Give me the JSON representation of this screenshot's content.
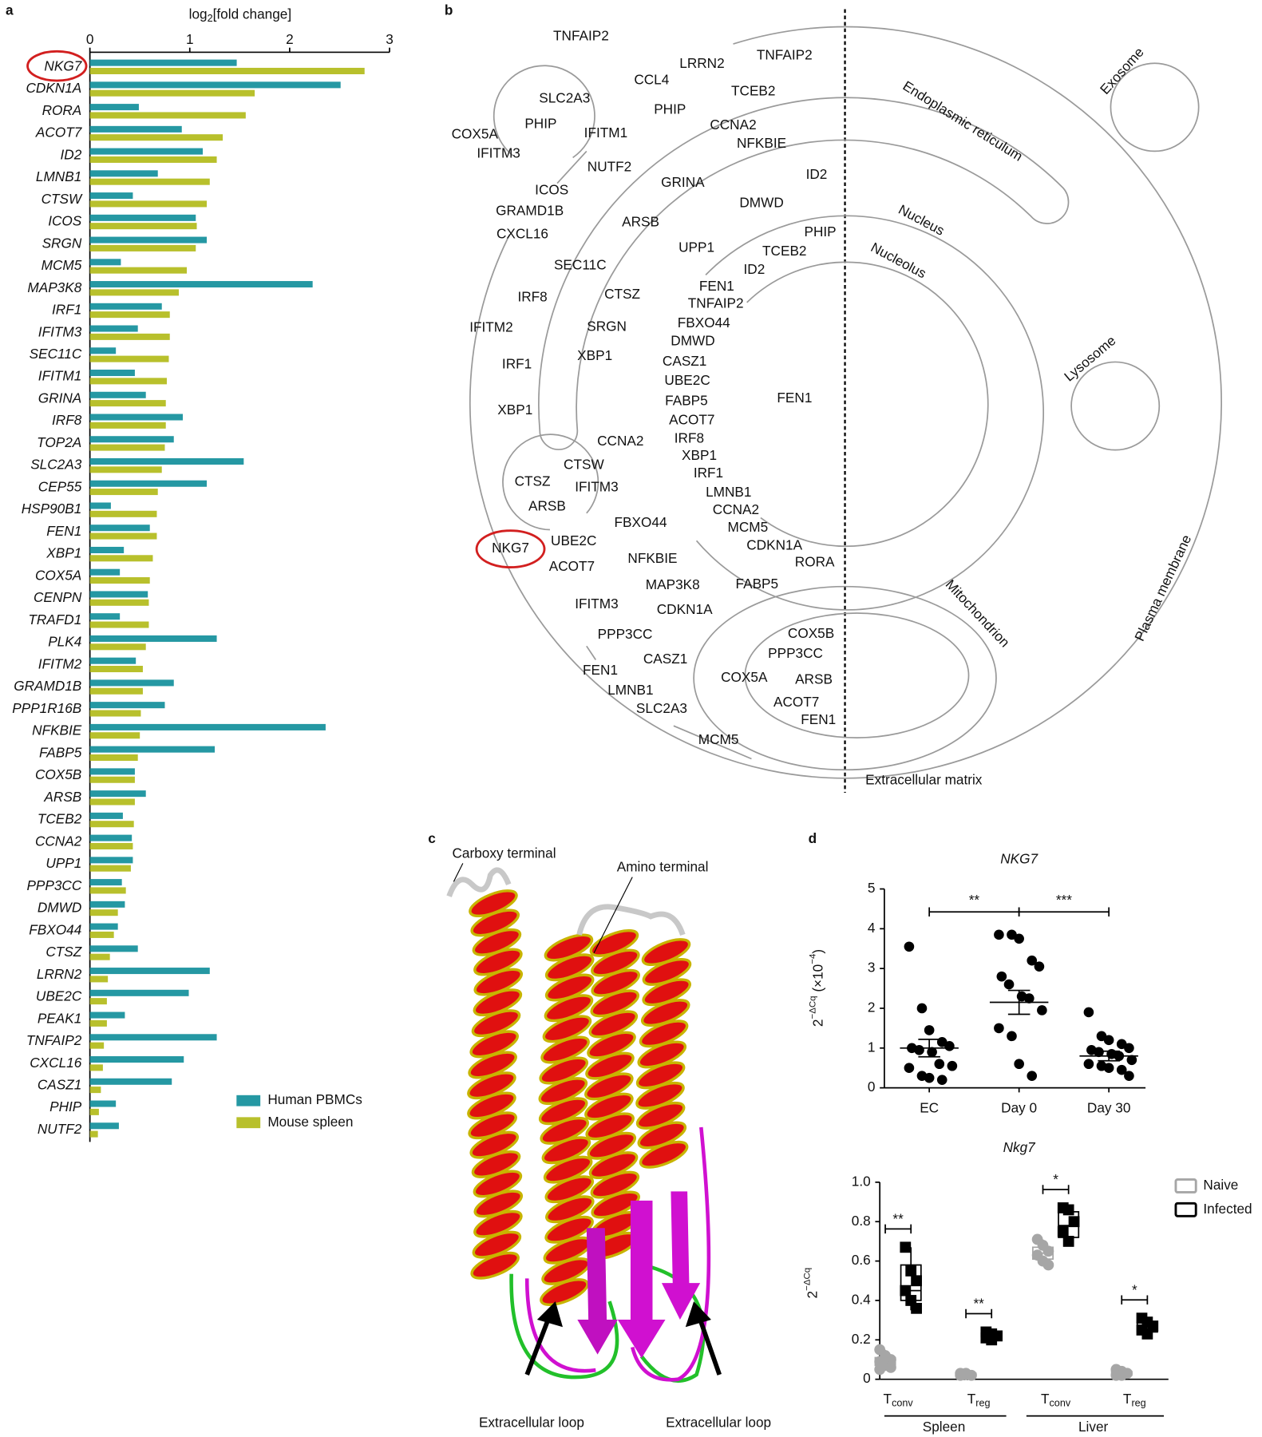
{
  "panel_labels": [
    "a",
    "b",
    "c",
    "d"
  ],
  "chart_data": [
    {
      "type": "bar",
      "orientation": "horizontal",
      "x_label": {
        "base": "log",
        "sub": "2",
        "rest": "[fold change]"
      },
      "xlim": [
        0,
        3
      ],
      "xticks": [
        0,
        1,
        2,
        3
      ],
      "categories": [
        "NKG7",
        "CDKN1A",
        "RORA",
        "ACOT7",
        "ID2",
        "LMNB1",
        "CTSW",
        "ICOS",
        "SRGN",
        "MCM5",
        "MAP3K8",
        "IRF1",
        "IFITM3",
        "SEC11C",
        "IFITM1",
        "GRINA",
        "IRF8",
        "TOP2A",
        "SLC2A3",
        "CEP55",
        "HSP90B1",
        "FEN1",
        "XBP1",
        "COX5A",
        "CENPN",
        "TRAFD1",
        "PLK4",
        "IFITM2",
        "GRAMD1B",
        "PPP1R16B",
        "NFKBIE",
        "FABP5",
        "COX5B",
        "ARSB",
        "TCEB2",
        "CCNA2",
        "UPP1",
        "PPP3CC",
        "DMWD",
        "FBXO44",
        "CTSZ",
        "LRRN2",
        "UBE2C",
        "PEAK1",
        "TNFAIP2",
        "CXCL16",
        "CASZ1",
        "PHIP",
        "NUTF2"
      ],
      "series": [
        {
          "name": "Human PBMCs",
          "color": "#2598a3",
          "values": [
            1.47,
            2.51,
            0.49,
            0.92,
            1.13,
            0.68,
            0.43,
            1.06,
            1.17,
            0.31,
            2.23,
            0.72,
            0.48,
            0.26,
            0.45,
            0.56,
            0.93,
            0.84,
            1.54,
            1.17,
            0.21,
            0.6,
            0.34,
            0.3,
            0.58,
            0.3,
            1.27,
            0.46,
            0.84,
            0.75,
            2.36,
            1.25,
            0.45,
            0.56,
            0.33,
            0.42,
            0.43,
            0.32,
            0.35,
            0.28,
            0.48,
            1.2,
            0.99,
            0.35,
            1.27,
            0.94,
            0.82,
            0.26,
            0.29
          ]
        },
        {
          "name": "Mouse spleen",
          "color": "#b8c02c",
          "values": [
            2.75,
            1.65,
            1.56,
            1.33,
            1.27,
            1.2,
            1.17,
            1.07,
            1.06,
            0.97,
            0.89,
            0.8,
            0.8,
            0.79,
            0.77,
            0.76,
            0.76,
            0.75,
            0.72,
            0.68,
            0.67,
            0.67,
            0.63,
            0.6,
            0.59,
            0.59,
            0.56,
            0.53,
            0.53,
            0.51,
            0.5,
            0.48,
            0.45,
            0.45,
            0.44,
            0.43,
            0.41,
            0.36,
            0.28,
            0.24,
            0.2,
            0.18,
            0.17,
            0.17,
            0.14,
            0.13,
            0.11,
            0.09,
            0.08
          ]
        }
      ]
    },
    {
      "type": "scatter",
      "title": "NKG7",
      "y_label": {
        "base": "2",
        "sup": "−ΔCq",
        "rest": " (×10",
        "sup2": "−4",
        "end": ")"
      },
      "categories": [
        "EC",
        "Day 0",
        "Day 30"
      ],
      "values": [
        [
          3.55,
          2.0,
          1.45,
          1.15,
          1.05,
          1.0,
          0.95,
          0.9,
          0.6,
          0.55,
          0.5,
          0.3,
          0.25,
          0.2
        ],
        [
          3.85,
          3.85,
          3.75,
          3.2,
          3.05,
          2.8,
          2.6,
          2.3,
          2.25,
          1.95,
          1.5,
          1.3,
          0.6,
          0.3
        ],
        [
          1.9,
          1.3,
          1.2,
          1.1,
          1.0,
          0.95,
          0.9,
          0.85,
          0.8,
          0.7,
          0.6,
          0.55,
          0.5,
          0.45,
          0.3
        ]
      ],
      "mean": [
        1.0,
        2.15,
        0.8
      ],
      "sem": [
        0.22,
        0.3,
        0.12
      ],
      "color": "#000000",
      "ylim": [
        0,
        5
      ],
      "yticks": [
        0,
        1,
        2,
        3,
        4,
        5
      ],
      "annotations": [
        "**",
        "***"
      ]
    },
    {
      "type": "box",
      "title": "Nkg7",
      "y_label": {
        "base": "2",
        "sup": "−ΔCq"
      },
      "categories": [
        {
          "base": "T",
          "sub": "conv"
        },
        {
          "base": "T",
          "sub": "reg"
        },
        {
          "base": "T",
          "sub": "conv"
        },
        {
          "base": "T",
          "sub": "reg"
        }
      ],
      "groups": [
        "Spleen",
        "Liver"
      ],
      "ylim": [
        0,
        1
      ],
      "yticks": [
        0,
        0.2,
        0.4,
        0.6,
        0.8,
        {
          "value": 1,
          "label": "1.0"
        }
      ],
      "series": [
        {
          "name": "Naive",
          "color": "#a6a6a6",
          "boxes": [
            {
              "min": 0.05,
              "q1": 0.07,
              "median": 0.09,
              "q3": 0.11,
              "max": 0.15,
              "points": [
                0.15,
                0.12,
                0.1,
                0.09,
                0.07,
                0.06,
                0.05
              ]
            },
            {
              "min": 0.015,
              "q1": 0.02,
              "median": 0.025,
              "q3": 0.03,
              "max": 0.035,
              "points": [
                0.03,
                0.025,
                0.02,
                0.02,
                0.03
              ]
            },
            {
              "min": 0.58,
              "q1": 0.61,
              "median": 0.64,
              "q3": 0.67,
              "max": 0.71,
              "points": [
                0.71,
                0.68,
                0.65,
                0.63,
                0.6,
                0.58
              ]
            },
            {
              "min": 0.015,
              "q1": 0.02,
              "median": 0.03,
              "q3": 0.04,
              "max": 0.05,
              "points": [
                0.05,
                0.04,
                0.03,
                0.02,
                0.02
              ]
            }
          ]
        },
        {
          "name": "Infected",
          "color": "#000000",
          "boxes": [
            {
              "min": 0.35,
              "q1": 0.4,
              "median": 0.45,
              "q3": 0.58,
              "max": 0.67,
              "points": [
                0.67,
                0.55,
                0.5,
                0.45,
                0.4,
                0.36
              ]
            },
            {
              "min": 0.19,
              "q1": 0.2,
              "median": 0.22,
              "q3": 0.23,
              "max": 0.24,
              "points": [
                0.24,
                0.23,
                0.22,
                0.21,
                0.2
              ]
            },
            {
              "min": 0.7,
              "q1": 0.72,
              "median": 0.78,
              "q3": 0.85,
              "max": 0.87,
              "points": [
                0.87,
                0.86,
                0.8,
                0.75,
                0.7
              ]
            },
            {
              "min": 0.22,
              "q1": 0.24,
              "median": 0.27,
              "q3": 0.29,
              "max": 0.31,
              "points": [
                0.31,
                0.29,
                0.27,
                0.25,
                0.23
              ]
            }
          ]
        }
      ],
      "annotations": [
        "**",
        "**",
        "*",
        "*"
      ]
    }
  ],
  "diagram": {
    "compartments": [
      "Exosome",
      "Endoplasmic reticulum",
      "Nucleus",
      "Nucleolus",
      "Lysosome",
      "Mitochondrion",
      "Plasma membrane",
      "Extracellular matrix"
    ],
    "genes": [
      "TNFAIP2",
      "LRRN2",
      "TNFAIP2",
      "CCL4",
      "SLC2A3",
      "PHIP",
      "PHIP",
      "TCEB2",
      "COX5A",
      "IFITM1",
      "CCNA2",
      "NFKBIE",
      "IFITM3",
      "NUTF2",
      "ID2",
      "GRINA",
      "ICOS",
      "GRAMD1B",
      "DMWD",
      "ARSB",
      "CXCL16",
      "PHIP",
      "UPP1",
      "TCEB2",
      "SEC11C",
      "ID2",
      "FEN1",
      "CTSZ",
      "IRF8",
      "TNFAIP2",
      "FBXO44",
      "IFITM2",
      "SRGN",
      "DMWD",
      "XBP1",
      "CASZ1",
      "IRF1",
      "UBE2C",
      "FEN1",
      "FABP5",
      "XBP1",
      "ACOT7",
      "IRF8",
      "CCNA2",
      "XBP1",
      "CTSW",
      "IRF1",
      "CTSZ",
      "IFITM3",
      "LMNB1",
      "ARSB",
      "CCNA2",
      "FBXO44",
      "MCM5",
      "NKG7",
      "UBE2C",
      "CDKN1A",
      "NFKBIE",
      "ACOT7",
      "RORA",
      "MAP3K8",
      "FABP5",
      "IFITM3",
      "CDKN1A",
      "COX5B",
      "PPP3CC",
      "PPP3CC",
      "CASZ1",
      "COX5A",
      "ARSB",
      "FEN1",
      "ACOT7",
      "LMNB1",
      "FEN1",
      "SLC2A3",
      "MCM5"
    ]
  },
  "structure": {
    "labels": [
      "Carboxy terminal",
      "Amino terminal",
      "Extracellular loop",
      "Extracellular loop"
    ]
  }
}
